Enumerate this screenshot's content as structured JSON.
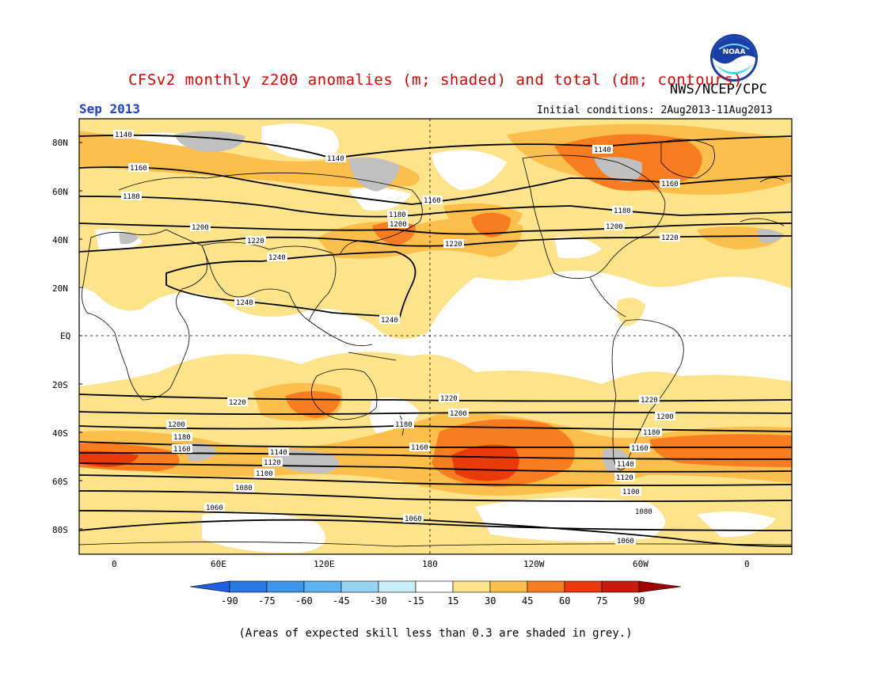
{
  "header": {
    "title": "CFSv2 monthly z200 anomalies (m; shaded) and total (dm; contours)",
    "month": "Sep 2013",
    "agency": "NWS/NCEP/CPC",
    "initial_conditions": "Initial conditions: 2Aug2013-11Aug2013"
  },
  "logo": {
    "name": "noaa-logo",
    "text": "NOAA"
  },
  "footer": {
    "skill_note": "(Areas of expected skill less than 0.3 are shaded in grey.)"
  },
  "colors": {
    "shade_15_30": "#fde38a",
    "shade_30_45": "#fdbf4c",
    "shade_45_60": "#f87d20",
    "shade_60_75": "#ea3a0a",
    "low_skill_grey": "#c0c0c0",
    "title_red": "#e00000",
    "month_blue": "#2040d0"
  },
  "map": {
    "lat_labels": [
      "80N",
      "60N",
      "40N",
      "20N",
      "EQ",
      "20S",
      "40S",
      "60S",
      "80S"
    ],
    "lon_labels": [
      "0",
      "60E",
      "120E",
      "180",
      "120W",
      "60W",
      "0"
    ],
    "contours": [
      {
        "value": "1240",
        "labels": [
          "1240",
          "1240",
          "1240"
        ]
      },
      {
        "value": "1220",
        "labels": [
          "1220",
          "1220",
          "1220",
          "1220",
          "1220",
          "1220",
          "1220"
        ]
      },
      {
        "value": "1200",
        "labels": [
          "1200",
          "1200",
          "1200",
          "1200",
          "1200",
          "1200"
        ]
      },
      {
        "value": "1180",
        "labels": [
          "1180",
          "1180",
          "1180",
          "1180",
          "1180",
          "1180"
        ]
      },
      {
        "value": "1160",
        "labels": [
          "1160",
          "1160",
          "1160",
          "1160",
          "1160",
          "1160"
        ]
      },
      {
        "value": "1140",
        "labels": [
          "1140",
          "1140",
          "1140",
          "1140",
          "1140"
        ]
      },
      {
        "value": "1120",
        "labels": [
          "1120",
          "1120"
        ]
      },
      {
        "value": "1100",
        "labels": [
          "1100",
          "1100"
        ]
      },
      {
        "value": "1080",
        "labels": [
          "1080",
          "1080"
        ]
      },
      {
        "value": "1060",
        "labels": [
          "1060",
          "1060",
          "1060",
          "1060"
        ]
      }
    ]
  },
  "colorbar": {
    "levels": [
      "-90",
      "-75",
      "-60",
      "-45",
      "-30",
      "-15",
      "15",
      "30",
      "45",
      "60",
      "75",
      "90"
    ],
    "colors": [
      "#2060e0",
      "#2878e8",
      "#3c96ec",
      "#5cb4f0",
      "#96d2f4",
      "#c8ecf8",
      "#ffffff",
      "#fde38a",
      "#fdbf4c",
      "#f87d20",
      "#ea3a0a",
      "#c81a0a",
      "#a00000"
    ]
  }
}
